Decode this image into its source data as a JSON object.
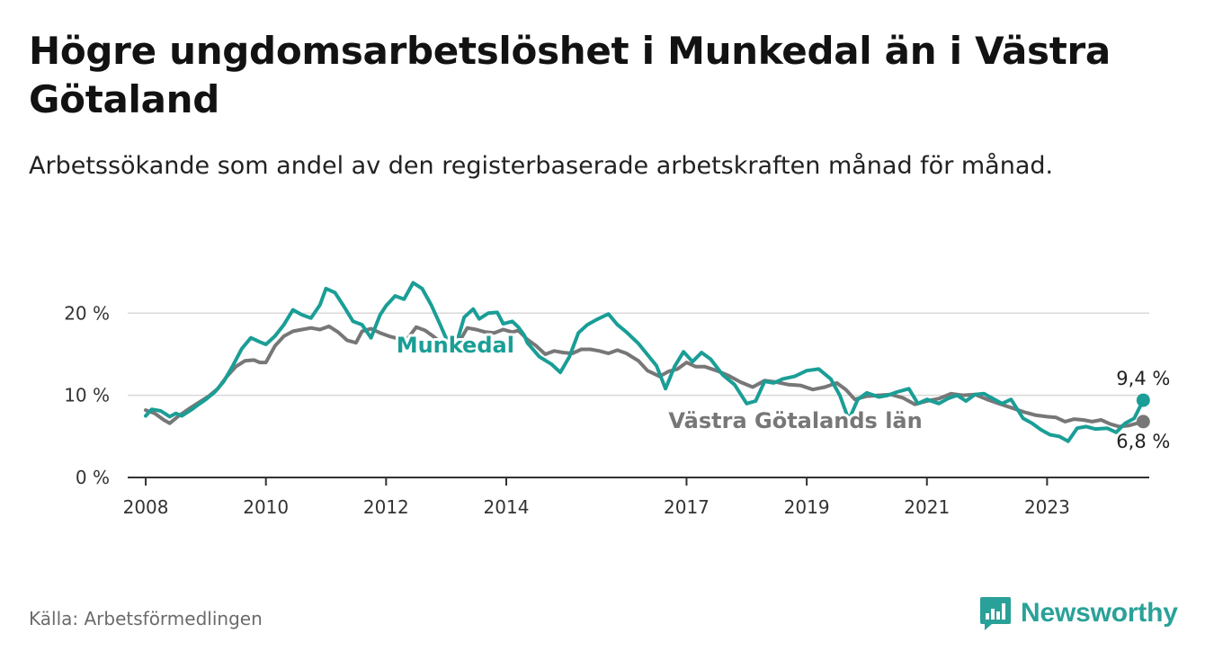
{
  "title": "Högre ungdomsarbetslöshet i Munkedal än i Västra Götaland",
  "subtitle": "Arbetssökande som andel av den registerbaserade arbetskraften månad för månad.",
  "source": "Källa: Arbetsförmedlingen",
  "brand": "Newsworthy",
  "colors": {
    "munkedal": "#1a9e96",
    "vastra": "#777777",
    "grid": "#d9d9d9",
    "axis": "#333333",
    "brand": "#2aa198"
  },
  "chart_data": {
    "type": "line",
    "title": "Högre ungdomsarbetslöshet i Munkedal än i Västra Götaland",
    "xlabel": "",
    "ylabel": "",
    "xlim": [
      2007.7,
      2024.7
    ],
    "ylim": [
      0,
      22
    ],
    "x_ticks": [
      2008,
      2010,
      2012,
      2014,
      2017,
      2019,
      2021,
      2023
    ],
    "y_ticks": [
      0,
      10,
      20
    ],
    "y_tick_labels": [
      "0 %",
      "10 %",
      "20 %"
    ],
    "series": [
      {
        "name": "Munkedal",
        "label": "Munkedal",
        "end_label": "9,4 %",
        "points": [
          [
            2008.0,
            7.5
          ],
          [
            2008.1,
            8.3
          ],
          [
            2008.25,
            8.1
          ],
          [
            2008.4,
            7.4
          ],
          [
            2008.5,
            7.8
          ],
          [
            2008.6,
            7.5
          ],
          [
            2008.75,
            8.2
          ],
          [
            2008.9,
            9.0
          ],
          [
            2009.0,
            9.5
          ],
          [
            2009.15,
            10.4
          ],
          [
            2009.3,
            11.7
          ],
          [
            2009.45,
            13.6
          ],
          [
            2009.6,
            15.7
          ],
          [
            2009.75,
            17.0
          ],
          [
            2009.9,
            16.5
          ],
          [
            2010.0,
            16.2
          ],
          [
            2010.15,
            17.2
          ],
          [
            2010.3,
            18.6
          ],
          [
            2010.45,
            20.4
          ],
          [
            2010.6,
            19.8
          ],
          [
            2010.75,
            19.4
          ],
          [
            2010.9,
            21.0
          ],
          [
            2011.0,
            23.0
          ],
          [
            2011.15,
            22.5
          ],
          [
            2011.3,
            20.8
          ],
          [
            2011.45,
            19.0
          ],
          [
            2011.6,
            18.6
          ],
          [
            2011.75,
            17.0
          ],
          [
            2011.9,
            19.8
          ],
          [
            2012.0,
            20.9
          ],
          [
            2012.15,
            22.1
          ],
          [
            2012.3,
            21.7
          ],
          [
            2012.45,
            23.7
          ],
          [
            2012.6,
            23.0
          ],
          [
            2012.75,
            21.0
          ],
          [
            2012.9,
            18.6
          ],
          [
            2013.0,
            16.9
          ],
          [
            2013.15,
            15.8
          ],
          [
            2013.3,
            19.5
          ],
          [
            2013.45,
            20.5
          ],
          [
            2013.55,
            19.3
          ],
          [
            2013.7,
            20.0
          ],
          [
            2013.85,
            20.1
          ],
          [
            2013.95,
            18.7
          ],
          [
            2014.1,
            19.0
          ],
          [
            2014.2,
            18.3
          ],
          [
            2014.3,
            17.3
          ],
          [
            2014.35,
            16.4
          ],
          [
            2014.55,
            14.7
          ],
          [
            2014.75,
            13.8
          ],
          [
            2014.9,
            12.8
          ],
          [
            2015.05,
            14.7
          ],
          [
            2015.2,
            17.6
          ],
          [
            2015.35,
            18.6
          ],
          [
            2015.5,
            19.2
          ],
          [
            2015.7,
            19.9
          ],
          [
            2015.85,
            18.6
          ],
          [
            2016.0,
            17.7
          ],
          [
            2016.2,
            16.3
          ],
          [
            2016.5,
            13.6
          ],
          [
            2016.65,
            10.8
          ],
          [
            2016.8,
            13.5
          ],
          [
            2016.95,
            15.3
          ],
          [
            2017.1,
            14.1
          ],
          [
            2017.25,
            15.2
          ],
          [
            2017.4,
            14.4
          ],
          [
            2017.6,
            12.5
          ],
          [
            2017.8,
            11.3
          ],
          [
            2018.0,
            9.0
          ],
          [
            2018.15,
            9.3
          ],
          [
            2018.3,
            11.7
          ],
          [
            2018.45,
            11.5
          ],
          [
            2018.6,
            12.0
          ],
          [
            2018.8,
            12.3
          ],
          [
            2019.0,
            13.0
          ],
          [
            2019.2,
            13.2
          ],
          [
            2019.4,
            12.0
          ],
          [
            2019.55,
            10.0
          ],
          [
            2019.7,
            7.0
          ],
          [
            2019.85,
            9.5
          ],
          [
            2020.0,
            10.3
          ],
          [
            2020.2,
            9.8
          ],
          [
            2020.35,
            10.0
          ],
          [
            2020.5,
            10.4
          ],
          [
            2020.7,
            10.8
          ],
          [
            2020.85,
            9.0
          ],
          [
            2021.0,
            9.5
          ],
          [
            2021.2,
            9.0
          ],
          [
            2021.35,
            9.6
          ],
          [
            2021.5,
            10.0
          ],
          [
            2021.65,
            9.3
          ],
          [
            2021.8,
            10.1
          ],
          [
            2021.95,
            10.2
          ],
          [
            2022.05,
            9.8
          ],
          [
            2022.25,
            9.0
          ],
          [
            2022.4,
            9.5
          ],
          [
            2022.6,
            7.2
          ],
          [
            2022.75,
            6.6
          ],
          [
            2022.9,
            5.8
          ],
          [
            2023.05,
            5.2
          ],
          [
            2023.2,
            5.0
          ],
          [
            2023.35,
            4.4
          ],
          [
            2023.5,
            6.0
          ],
          [
            2023.65,
            6.2
          ],
          [
            2023.8,
            5.9
          ],
          [
            2024.0,
            6.0
          ],
          [
            2024.15,
            5.5
          ],
          [
            2024.3,
            6.6
          ],
          [
            2024.45,
            7.2
          ],
          [
            2024.6,
            9.4
          ]
        ]
      },
      {
        "name": "Västra Götalands län",
        "label": "Västra Götalands län",
        "end_label": "6,8 %",
        "points": [
          [
            2008.0,
            8.2
          ],
          [
            2008.15,
            7.8
          ],
          [
            2008.3,
            7.0
          ],
          [
            2008.4,
            6.6
          ],
          [
            2008.55,
            7.5
          ],
          [
            2008.75,
            8.5
          ],
          [
            2008.9,
            9.2
          ],
          [
            2009.05,
            9.9
          ],
          [
            2009.2,
            10.8
          ],
          [
            2009.35,
            12.3
          ],
          [
            2009.5,
            13.5
          ],
          [
            2009.65,
            14.2
          ],
          [
            2009.8,
            14.3
          ],
          [
            2009.9,
            14.0
          ],
          [
            2010.0,
            14.0
          ],
          [
            2010.15,
            16.0
          ],
          [
            2010.3,
            17.2
          ],
          [
            2010.45,
            17.8
          ],
          [
            2010.6,
            18.0
          ],
          [
            2010.75,
            18.2
          ],
          [
            2010.9,
            18.0
          ],
          [
            2011.05,
            18.4
          ],
          [
            2011.2,
            17.7
          ],
          [
            2011.35,
            16.7
          ],
          [
            2011.5,
            16.4
          ],
          [
            2011.6,
            17.8
          ],
          [
            2011.75,
            18.1
          ],
          [
            2011.9,
            17.6
          ],
          [
            2012.05,
            17.2
          ],
          [
            2012.2,
            16.9
          ],
          [
            2012.35,
            16.8
          ],
          [
            2012.5,
            18.3
          ],
          [
            2012.65,
            17.9
          ],
          [
            2012.8,
            17.1
          ],
          [
            2012.95,
            16.2
          ],
          [
            2013.05,
            17.1
          ],
          [
            2013.2,
            16.3
          ],
          [
            2013.35,
            18.2
          ],
          [
            2013.5,
            18.0
          ],
          [
            2013.65,
            17.7
          ],
          [
            2013.8,
            17.6
          ],
          [
            2013.95,
            18.0
          ],
          [
            2014.1,
            17.7
          ],
          [
            2014.2,
            17.9
          ],
          [
            2014.35,
            16.8
          ],
          [
            2014.5,
            16.0
          ],
          [
            2014.65,
            15.0
          ],
          [
            2014.8,
            15.4
          ],
          [
            2014.95,
            15.2
          ],
          [
            2015.1,
            15.1
          ],
          [
            2015.25,
            15.6
          ],
          [
            2015.4,
            15.6
          ],
          [
            2015.55,
            15.4
          ],
          [
            2015.7,
            15.1
          ],
          [
            2015.85,
            15.5
          ],
          [
            2016.0,
            15.1
          ],
          [
            2016.2,
            14.2
          ],
          [
            2016.35,
            13.0
          ],
          [
            2016.55,
            12.3
          ],
          [
            2016.7,
            12.9
          ],
          [
            2016.85,
            13.2
          ],
          [
            2017.0,
            14.0
          ],
          [
            2017.15,
            13.5
          ],
          [
            2017.3,
            13.5
          ],
          [
            2017.5,
            13.0
          ],
          [
            2017.7,
            12.4
          ],
          [
            2017.9,
            11.6
          ],
          [
            2018.1,
            11.0
          ],
          [
            2018.3,
            11.8
          ],
          [
            2018.5,
            11.6
          ],
          [
            2018.7,
            11.3
          ],
          [
            2018.9,
            11.2
          ],
          [
            2019.1,
            10.7
          ],
          [
            2019.3,
            11.0
          ],
          [
            2019.5,
            11.5
          ],
          [
            2019.65,
            10.7
          ],
          [
            2019.8,
            9.5
          ],
          [
            2020.0,
            9.9
          ],
          [
            2020.2,
            10.0
          ],
          [
            2020.4,
            10.1
          ],
          [
            2020.6,
            9.7
          ],
          [
            2020.8,
            8.9
          ],
          [
            2021.0,
            9.3
          ],
          [
            2021.2,
            9.6
          ],
          [
            2021.4,
            10.2
          ],
          [
            2021.6,
            10.0
          ],
          [
            2021.8,
            10.1
          ],
          [
            2022.0,
            9.5
          ],
          [
            2022.2,
            9.0
          ],
          [
            2022.4,
            8.5
          ],
          [
            2022.6,
            8.0
          ],
          [
            2022.8,
            7.6
          ],
          [
            2023.0,
            7.4
          ],
          [
            2023.15,
            7.3
          ],
          [
            2023.3,
            6.8
          ],
          [
            2023.45,
            7.1
          ],
          [
            2023.6,
            7.0
          ],
          [
            2023.75,
            6.8
          ],
          [
            2023.9,
            7.0
          ],
          [
            2024.05,
            6.5
          ],
          [
            2024.2,
            6.2
          ],
          [
            2024.35,
            6.3
          ],
          [
            2024.5,
            6.6
          ],
          [
            2024.6,
            6.8
          ]
        ]
      }
    ]
  }
}
